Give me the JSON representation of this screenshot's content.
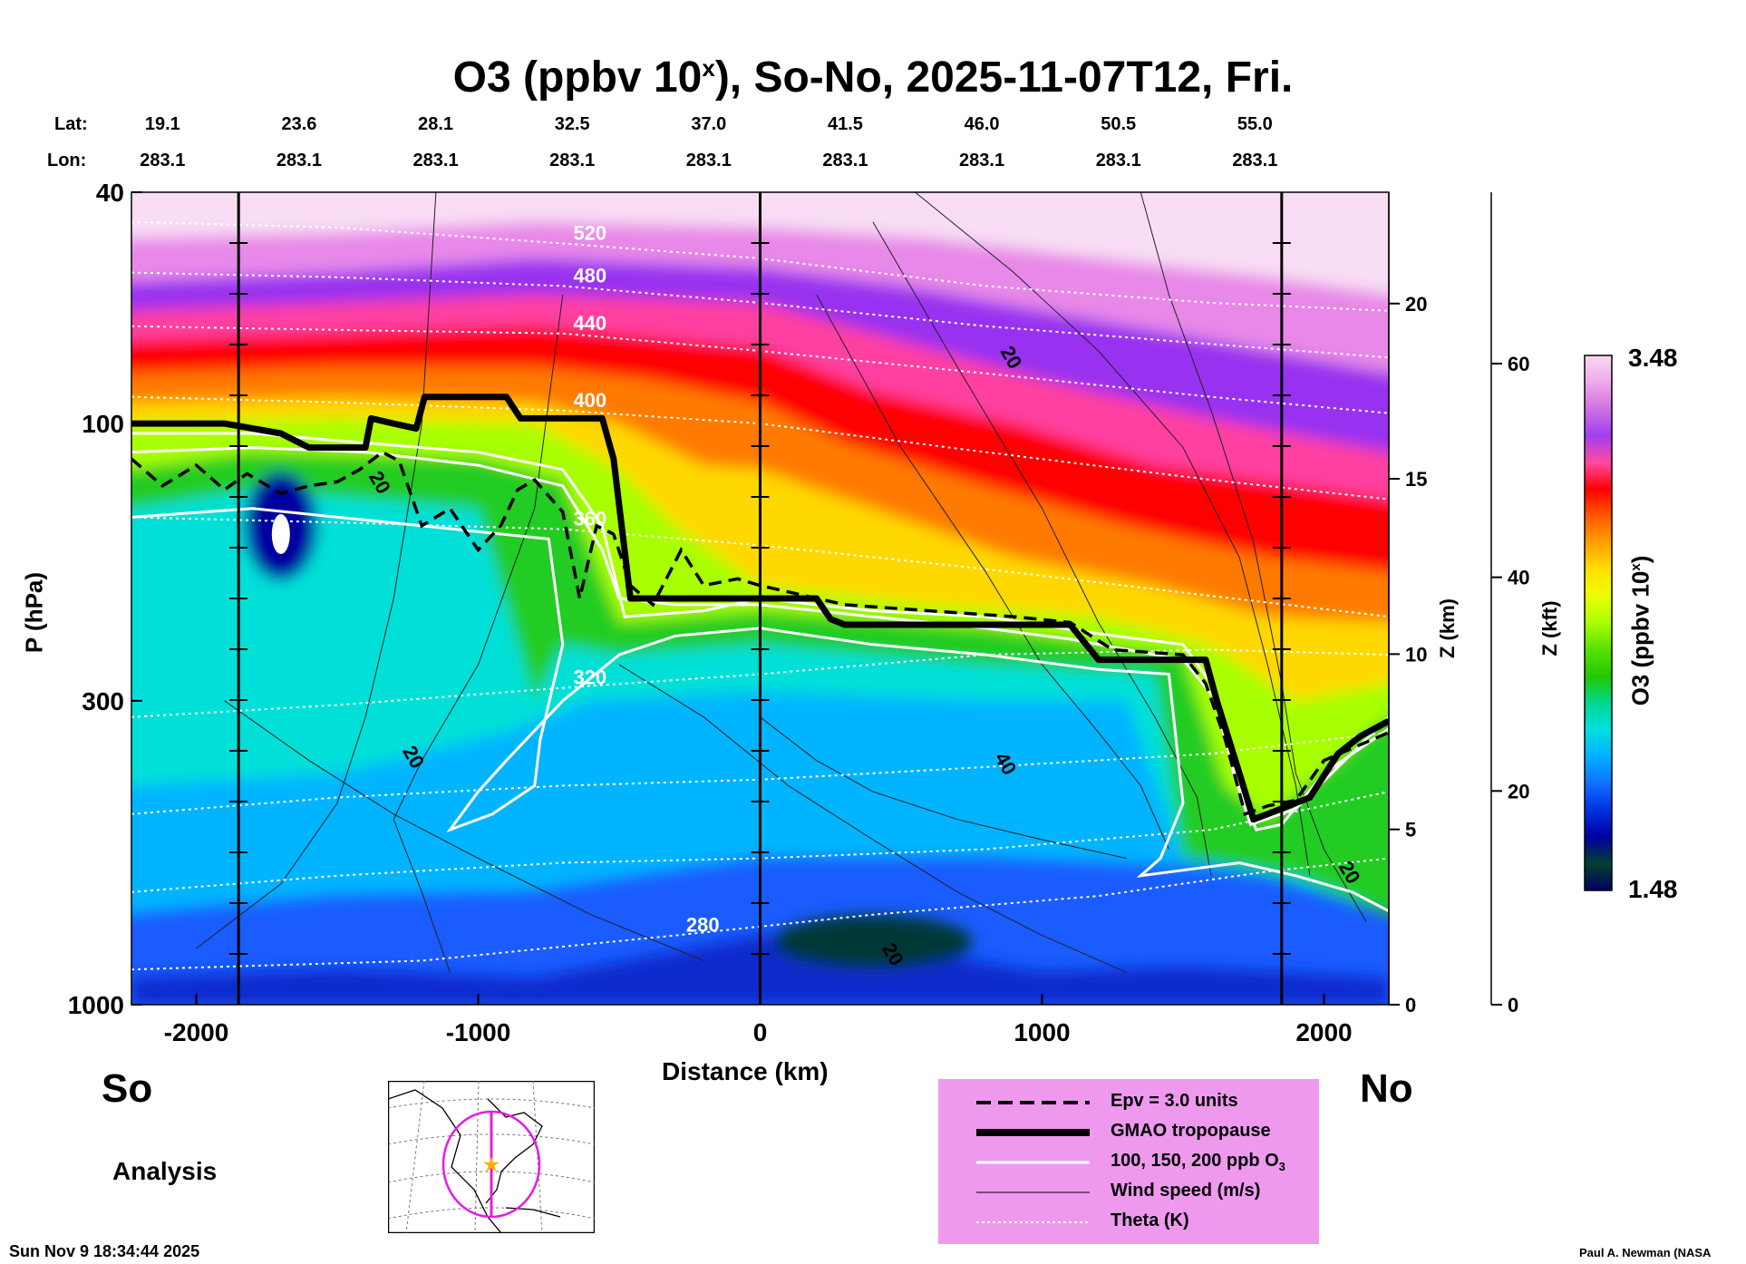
{
  "title": {
    "main": "O3 (ppbv 10",
    "sup": "x",
    "rest": "), So-No, 2025-11-07T12, Fri."
  },
  "header": {
    "lat_label": "Lat:",
    "lon_label": "Lon:",
    "lat": [
      "19.1",
      "23.6",
      "28.1",
      "32.5",
      "37.0",
      "41.5",
      "46.0",
      "50.5",
      "55.0"
    ],
    "lon": [
      "283.1",
      "283.1",
      "283.1",
      "283.1",
      "283.1",
      "283.1",
      "283.1",
      "283.1",
      "283.1"
    ]
  },
  "labels": {
    "left_end": "So",
    "right_end": "No",
    "analysis": "Analysis",
    "timestamp": "Sun Nov  9 18:34:44 2025",
    "credit": "Paul A. Newman (NASA"
  },
  "legend": {
    "items": [
      {
        "label": "Epv = 3.0 units",
        "style": "dashed"
      },
      {
        "label": "GMAO tropopause",
        "style": "thick"
      },
      {
        "label": "100, 150, 200 ppb O",
        "sub": "3",
        "style": "white"
      },
      {
        "label": "Wind speed (m/s)",
        "style": "thin"
      },
      {
        "label": "Theta (K)",
        "style": "dotted"
      }
    ],
    "bg_color": "#ee99ee"
  },
  "colorbar": {
    "max_label": "3.48",
    "min_label": "1.48",
    "axis_label": "O3 (ppbv 10",
    "axis_label_sup": "x",
    "axis_label_end": ")",
    "colors": [
      "#f8d8f0",
      "#eeaaea",
      "#d070e0",
      "#a040f0",
      "#ff4aa0",
      "#ff0000",
      "#ff5a00",
      "#ffa000",
      "#ffdf00",
      "#ecff00",
      "#a8ff00",
      "#58e000",
      "#22c800",
      "#00d890",
      "#00e0e0",
      "#00b0ff",
      "#1070ff",
      "#0030e0",
      "#0000a0",
      "#004030",
      "#000060"
    ]
  },
  "chart_data": {
    "type": "heatmap",
    "title": "O3 (ppbv 10x), So-No, 2025-11-07T12, Fri.",
    "xlabel": "Distance (km)",
    "ylabel": "P (hPa)",
    "ylabel_right": "Z (km)",
    "ylabel_right2": "Z (kft)",
    "xlim": [
      -2230,
      2230
    ],
    "ylim": [
      1000,
      40
    ],
    "yscale": "log",
    "x_ticks": [
      -2000,
      -1000,
      0,
      1000,
      2000
    ],
    "x_tick_labels": [
      "-2000",
      "-1000",
      "0",
      "1000",
      "2000"
    ],
    "p_ticks": [
      40,
      100,
      300,
      1000
    ],
    "p_tick_labels": [
      "40",
      "100",
      "300",
      "1000"
    ],
    "z_km_ticks": [
      0,
      5,
      10,
      15,
      20
    ],
    "z_km_labels": [
      "0",
      "5",
      "10",
      "15",
      "20"
    ],
    "z_kft_ticks": [
      0,
      20,
      40,
      60
    ],
    "z_kft_labels": [
      "0",
      "20",
      "40",
      "60"
    ],
    "vertical_lines_km": [
      -1850,
      0,
      1850
    ],
    "theta_contours": [
      {
        "label": "520",
        "pts": [
          [
            -2230,
            45
          ],
          [
            -1500,
            46
          ],
          [
            -700,
            49
          ],
          [
            0,
            52
          ],
          [
            800,
            58
          ],
          [
            1600,
            62
          ],
          [
            2230,
            64
          ]
        ]
      },
      {
        "label": "480",
        "pts": [
          [
            -2230,
            55
          ],
          [
            -1500,
            56
          ],
          [
            -700,
            58
          ],
          [
            0,
            62
          ],
          [
            800,
            68
          ],
          [
            1600,
            73
          ],
          [
            2230,
            77
          ]
        ]
      },
      {
        "label": "440",
        "pts": [
          [
            -2230,
            68
          ],
          [
            -1500,
            69
          ],
          [
            -700,
            70
          ],
          [
            0,
            75
          ],
          [
            800,
            82
          ],
          [
            1600,
            90
          ],
          [
            2230,
            96
          ]
        ]
      },
      {
        "label": "400",
        "pts": [
          [
            -2230,
            90
          ],
          [
            -1500,
            92
          ],
          [
            -700,
            95
          ],
          [
            0,
            100
          ],
          [
            800,
            112
          ],
          [
            1600,
            125
          ],
          [
            2230,
            135
          ]
        ]
      },
      {
        "label": "360",
        "pts": [
          [
            -2230,
            145
          ],
          [
            -1500,
            148
          ],
          [
            -700,
            152
          ],
          [
            0,
            162
          ],
          [
            800,
            178
          ],
          [
            1600,
            198
          ],
          [
            2230,
            215
          ]
        ]
      },
      {
        "label": "320",
        "pts": [
          [
            -2230,
            320
          ],
          [
            -1500,
            305
          ],
          [
            -700,
            285
          ],
          [
            0,
            270
          ],
          [
            800,
            250
          ],
          [
            1600,
            245
          ],
          [
            2230,
            250
          ]
        ]
      },
      {
        "label": "",
        "pts": [
          [
            -2230,
            470
          ],
          [
            -1500,
            440
          ],
          [
            -700,
            420
          ],
          [
            0,
            410
          ],
          [
            800,
            390
          ],
          [
            1600,
            370
          ],
          [
            2230,
            340
          ]
        ]
      },
      {
        "label": "",
        "pts": [
          [
            -2230,
            640
          ],
          [
            -1500,
            600
          ],
          [
            -700,
            570
          ],
          [
            0,
            560
          ],
          [
            800,
            540
          ],
          [
            1600,
            500
          ],
          [
            2230,
            430
          ]
        ]
      },
      {
        "label": "280",
        "pts": [
          [
            -2230,
            870
          ],
          [
            -1200,
            840
          ],
          [
            -300,
            760
          ],
          [
            400,
            700
          ],
          [
            1200,
            650
          ],
          [
            1800,
            590
          ],
          [
            2230,
            560
          ]
        ]
      }
    ],
    "tropopause": {
      "pts": [
        [
          -2230,
          100
        ],
        [
          -1900,
          100
        ],
        [
          -1700,
          104
        ],
        [
          -1600,
          110
        ],
        [
          -1400,
          110
        ],
        [
          -1380,
          98
        ],
        [
          -1300,
          100
        ],
        [
          -1220,
          102
        ],
        [
          -1190,
          90
        ],
        [
          -1100,
          90
        ],
        [
          -900,
          90
        ],
        [
          -850,
          98
        ],
        [
          -560,
          98
        ],
        [
          -520,
          115
        ],
        [
          -460,
          200
        ],
        [
          -100,
          200
        ],
        [
          0,
          200
        ],
        [
          200,
          200
        ],
        [
          250,
          217
        ],
        [
          300,
          222
        ],
        [
          1100,
          222
        ],
        [
          1200,
          255
        ],
        [
          1580,
          255
        ],
        [
          1620,
          300
        ],
        [
          1700,
          400
        ],
        [
          1750,
          480
        ],
        [
          1850,
          460
        ],
        [
          1950,
          440
        ],
        [
          2050,
          370
        ],
        [
          2130,
          345
        ],
        [
          2230,
          325
        ]
      ]
    },
    "epv3_line": {
      "pts": [
        [
          -2230,
          115
        ],
        [
          -2120,
          128
        ],
        [
          -2000,
          118
        ],
        [
          -1900,
          130
        ],
        [
          -1820,
          122
        ],
        [
          -1700,
          132
        ],
        [
          -1600,
          128
        ],
        [
          -1500,
          126
        ],
        [
          -1420,
          120
        ],
        [
          -1340,
          112
        ],
        [
          -1280,
          116
        ],
        [
          -1200,
          150
        ],
        [
          -1100,
          140
        ],
        [
          -1000,
          165
        ],
        [
          -920,
          150
        ],
        [
          -860,
          130
        ],
        [
          -800,
          125
        ],
        [
          -700,
          142
        ],
        [
          -640,
          200
        ],
        [
          -580,
          150
        ],
        [
          -520,
          155
        ],
        [
          -460,
          190
        ],
        [
          -380,
          205
        ],
        [
          -320,
          180
        ],
        [
          -280,
          165
        ],
        [
          -200,
          190
        ],
        [
          -80,
          185
        ],
        [
          0,
          190
        ],
        [
          300,
          205
        ],
        [
          600,
          210
        ],
        [
          900,
          215
        ],
        [
          1100,
          220
        ],
        [
          1250,
          245
        ],
        [
          1500,
          250
        ],
        [
          1580,
          280
        ],
        [
          1650,
          350
        ],
        [
          1720,
          470
        ],
        [
          1800,
          455
        ],
        [
          1900,
          445
        ],
        [
          2000,
          380
        ],
        [
          2230,
          340
        ]
      ]
    },
    "o3_100_line": {
      "pts": [
        [
          -2230,
          112
        ],
        [
          -1800,
          110
        ],
        [
          -1400,
          112
        ],
        [
          -1000,
          118
        ],
        [
          -700,
          128
        ],
        [
          -560,
          165
        ],
        [
          -500,
          200
        ],
        [
          -300,
          205
        ],
        [
          0,
          205
        ],
        [
          400,
          215
        ],
        [
          800,
          225
        ],
        [
          1100,
          235
        ],
        [
          1500,
          255
        ],
        [
          1620,
          300
        ],
        [
          1700,
          420
        ],
        [
          1760,
          500
        ],
        [
          1850,
          490
        ],
        [
          2000,
          400
        ],
        [
          2230,
          335
        ]
      ]
    },
    "o3_150_line": {
      "pts": [
        [
          -2230,
          104
        ],
        [
          -1800,
          104
        ],
        [
          -1400,
          108
        ],
        [
          -1000,
          112
        ],
        [
          -700,
          120
        ],
        [
          -560,
          150
        ],
        [
          -480,
          215
        ],
        [
          -200,
          210
        ],
        [
          0,
          200
        ],
        [
          400,
          210
        ],
        [
          800,
          215
        ],
        [
          1200,
          230
        ],
        [
          1500,
          240
        ],
        [
          1600,
          280
        ],
        [
          1680,
          400
        ],
        [
          1740,
          490
        ],
        [
          1900,
          460
        ],
        [
          2230,
          320
        ]
      ]
    },
    "o3_200_line": {
      "pts": [
        [
          -2230,
          145
        ],
        [
          -1800,
          140
        ],
        [
          -1200,
          150
        ],
        [
          -750,
          158
        ],
        [
          -700,
          240
        ],
        [
          -780,
          350
        ],
        [
          -800,
          420
        ],
        [
          -950,
          470
        ],
        [
          -1100,
          500
        ],
        [
          -1000,
          430
        ],
        [
          -900,
          380
        ],
        [
          -700,
          300
        ],
        [
          -500,
          250
        ],
        [
          -300,
          232
        ],
        [
          0,
          225
        ],
        [
          400,
          240
        ],
        [
          800,
          250
        ],
        [
          1200,
          265
        ],
        [
          1450,
          270
        ],
        [
          1500,
          450
        ],
        [
          1420,
          560
        ],
        [
          1350,
          600
        ],
        [
          1700,
          570
        ],
        [
          1900,
          600
        ],
        [
          2100,
          640
        ],
        [
          2230,
          690
        ]
      ]
    },
    "wind_labels": [
      {
        "label": "20",
        "x": -1370,
        "p": 128
      },
      {
        "label": "20",
        "x": -1250,
        "p": 380
      },
      {
        "label": "20",
        "x": 870,
        "p": 78
      },
      {
        "label": "40",
        "x": 850,
        "p": 390
      },
      {
        "label": "20",
        "x": 450,
        "p": 830
      },
      {
        "label": "20",
        "x": 2070,
        "p": 600
      }
    ],
    "wind_contours": [
      {
        "pts": [
          [
            -1150,
            40
          ],
          [
            -1200,
            100
          ],
          [
            -1300,
            200
          ],
          [
            -1400,
            320
          ],
          [
            -1500,
            450
          ],
          [
            -1700,
            620
          ],
          [
            -2000,
            800
          ]
        ]
      },
      {
        "pts": [
          [
            -700,
            60
          ],
          [
            -800,
            140
          ],
          [
            -1000,
            260
          ],
          [
            -1200,
            380
          ],
          [
            -1300,
            480
          ],
          [
            -1200,
            640
          ],
          [
            -1100,
            880
          ]
        ]
      },
      {
        "pts": [
          [
            400,
            45
          ],
          [
            700,
            80
          ],
          [
            1000,
            140
          ],
          [
            1200,
            220
          ],
          [
            1400,
            320
          ],
          [
            1550,
            440
          ],
          [
            1600,
            600
          ]
        ]
      },
      {
        "pts": [
          [
            200,
            60
          ],
          [
            500,
            110
          ],
          [
            800,
            180
          ],
          [
            1000,
            260
          ],
          [
            1200,
            340
          ],
          [
            1350,
            420
          ],
          [
            1450,
            540
          ]
        ]
      },
      {
        "pts": [
          [
            550,
            40
          ],
          [
            900,
            55
          ],
          [
            1200,
            75
          ],
          [
            1500,
            110
          ],
          [
            1700,
            170
          ],
          [
            1800,
            260
          ],
          [
            1900,
            420
          ],
          [
            1950,
            600
          ]
        ]
      },
      {
        "pts": [
          [
            1350,
            40
          ],
          [
            1450,
            60
          ],
          [
            1600,
            95
          ],
          [
            1750,
            160
          ],
          [
            1850,
            280
          ],
          [
            1900,
            400
          ],
          [
            2000,
            540
          ],
          [
            2150,
            720
          ]
        ]
      },
      {
        "pts": [
          [
            0,
            320
          ],
          [
            200,
            380
          ],
          [
            400,
            430
          ],
          [
            700,
            480
          ],
          [
            1000,
            520
          ],
          [
            1300,
            560
          ]
        ]
      },
      {
        "pts": [
          [
            -500,
            260
          ],
          [
            -200,
            320
          ],
          [
            100,
            420
          ],
          [
            400,
            520
          ],
          [
            700,
            640
          ],
          [
            1000,
            760
          ],
          [
            1300,
            880
          ]
        ]
      },
      {
        "pts": [
          [
            -1900,
            300
          ],
          [
            -1600,
            380
          ],
          [
            -1300,
            470
          ],
          [
            -1000,
            560
          ],
          [
            -600,
            700
          ],
          [
            -200,
            840
          ]
        ]
      }
    ]
  }
}
